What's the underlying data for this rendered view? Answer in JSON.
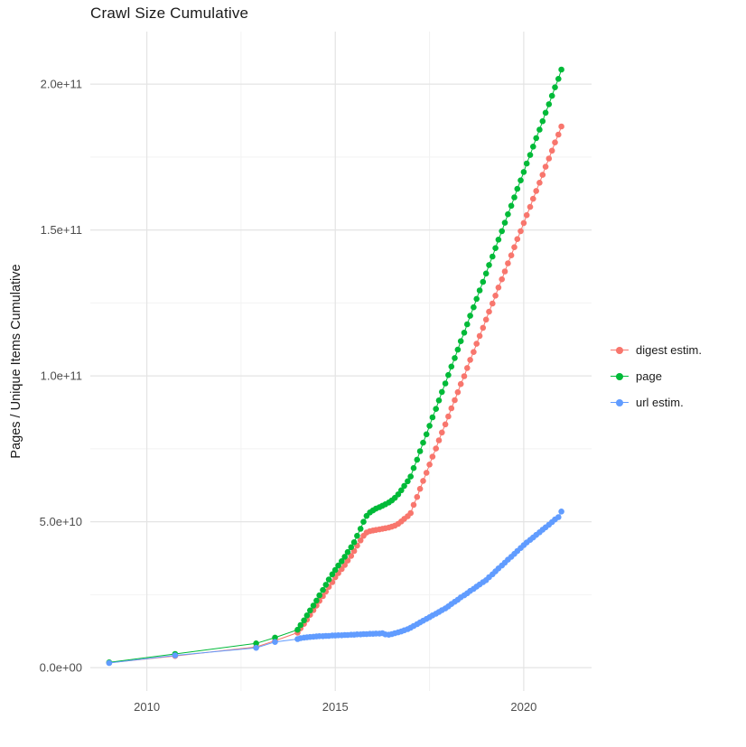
{
  "chart_data": {
    "type": "scatter",
    "title": "Crawl Size Cumulative",
    "xlabel": "",
    "ylabel": "Pages / Unique Items Cumulative",
    "y_unit": "absolute count (values below stored in units of 1e9)",
    "xlim": [
      2008.5,
      2021.8
    ],
    "ylim_e9": [
      -8,
      218
    ],
    "grid": true,
    "legend_position": "right",
    "x_ticks": [
      {
        "value": 2010,
        "label": "2010"
      },
      {
        "value": 2015,
        "label": "2015"
      },
      {
        "value": 2020,
        "label": "2020"
      }
    ],
    "y_ticks": [
      {
        "value_e9": 0,
        "label": "0.0e+00"
      },
      {
        "value_e9": 50,
        "label": "5.0e+10"
      },
      {
        "value_e9": 100,
        "label": "1.0e+11"
      },
      {
        "value_e9": 150,
        "label": "1.5e+11"
      },
      {
        "value_e9": 200,
        "label": "2.0e+11"
      }
    ],
    "x_minor": [
      2012.5,
      2017.5
    ],
    "y_minor_e9": [
      25,
      75,
      125,
      175
    ],
    "series": [
      {
        "name": "digest estim.",
        "color": "#F8766D",
        "points": [
          [
            2009,
            1.7
          ],
          [
            2010.75,
            4
          ],
          [
            2012.9,
            7.1
          ],
          [
            2013.4,
            9.2
          ],
          [
            2014,
            12
          ],
          [
            2014.08,
            13.5
          ],
          [
            2014.17,
            15
          ],
          [
            2014.25,
            16.5
          ],
          [
            2014.33,
            18.1
          ],
          [
            2014.42,
            19.7
          ],
          [
            2014.5,
            21.3
          ],
          [
            2014.58,
            22.9
          ],
          [
            2014.67,
            24.5
          ],
          [
            2014.75,
            26.1
          ],
          [
            2014.83,
            27.7
          ],
          [
            2014.92,
            29.3
          ],
          [
            2015,
            31
          ],
          [
            2015.08,
            32.4
          ],
          [
            2015.17,
            33.8
          ],
          [
            2015.25,
            35.2
          ],
          [
            2015.33,
            36.7
          ],
          [
            2015.42,
            38.3
          ],
          [
            2015.5,
            40
          ],
          [
            2015.58,
            41.8
          ],
          [
            2015.67,
            43.6
          ],
          [
            2015.75,
            45.2
          ],
          [
            2015.83,
            46.3
          ],
          [
            2015.92,
            46.8
          ],
          [
            2016,
            47
          ],
          [
            2016.08,
            47.2
          ],
          [
            2016.17,
            47.4
          ],
          [
            2016.25,
            47.6
          ],
          [
            2016.33,
            47.8
          ],
          [
            2016.42,
            48
          ],
          [
            2016.5,
            48.3
          ],
          [
            2016.58,
            48.7
          ],
          [
            2016.67,
            49.3
          ],
          [
            2016.75,
            50.1
          ],
          [
            2016.83,
            51
          ],
          [
            2016.92,
            51.9
          ],
          [
            2017,
            53
          ],
          [
            2017.08,
            55.8
          ],
          [
            2017.17,
            58.5
          ],
          [
            2017.25,
            61.3
          ],
          [
            2017.33,
            64
          ],
          [
            2017.42,
            66.8
          ],
          [
            2017.5,
            69.6
          ],
          [
            2017.58,
            72.3
          ],
          [
            2017.67,
            75.1
          ],
          [
            2017.75,
            77.9
          ],
          [
            2017.83,
            80.6
          ],
          [
            2017.92,
            83.4
          ],
          [
            2018,
            86.1
          ],
          [
            2018.08,
            88.9
          ],
          [
            2018.17,
            91.7
          ],
          [
            2018.25,
            94.4
          ],
          [
            2018.33,
            97.2
          ],
          [
            2018.42,
            99.9
          ],
          [
            2018.5,
            102.7
          ],
          [
            2018.58,
            105.5
          ],
          [
            2018.67,
            108.2
          ],
          [
            2018.75,
            111
          ],
          [
            2018.83,
            113.7
          ],
          [
            2018.92,
            116.5
          ],
          [
            2019,
            119.3
          ],
          [
            2019.08,
            122
          ],
          [
            2019.17,
            124.8
          ],
          [
            2019.25,
            127.5
          ],
          [
            2019.33,
            130.3
          ],
          [
            2019.42,
            133.1
          ],
          [
            2019.5,
            135.8
          ],
          [
            2019.58,
            138.6
          ],
          [
            2019.67,
            141.3
          ],
          [
            2019.75,
            144.1
          ],
          [
            2019.83,
            146.9
          ],
          [
            2019.92,
            149.6
          ],
          [
            2020,
            152.4
          ],
          [
            2020.08,
            155.1
          ],
          [
            2020.17,
            157.9
          ],
          [
            2020.25,
            160.7
          ],
          [
            2020.33,
            163.4
          ],
          [
            2020.42,
            166.2
          ],
          [
            2020.5,
            168.9
          ],
          [
            2020.58,
            171.7
          ],
          [
            2020.67,
            174.5
          ],
          [
            2020.75,
            177.2
          ],
          [
            2020.83,
            180
          ],
          [
            2020.92,
            182.7
          ],
          [
            2021,
            185.5
          ]
        ]
      },
      {
        "name": "page",
        "color": "#00BA38",
        "points": [
          [
            2009,
            1.8
          ],
          [
            2010.75,
            4.7
          ],
          [
            2012.9,
            8.3
          ],
          [
            2013.4,
            10.3
          ],
          [
            2014,
            13
          ],
          [
            2014.08,
            14.6
          ],
          [
            2014.17,
            16.2
          ],
          [
            2014.25,
            17.9
          ],
          [
            2014.33,
            19.6
          ],
          [
            2014.42,
            21.3
          ],
          [
            2014.5,
            23
          ],
          [
            2014.58,
            24.8
          ],
          [
            2014.67,
            26.6
          ],
          [
            2014.75,
            28.4
          ],
          [
            2014.83,
            30.2
          ],
          [
            2014.92,
            32
          ],
          [
            2015,
            33.5
          ],
          [
            2015.08,
            35
          ],
          [
            2015.17,
            36.5
          ],
          [
            2015.25,
            38
          ],
          [
            2015.33,
            39.6
          ],
          [
            2015.42,
            41.3
          ],
          [
            2015.5,
            43
          ],
          [
            2015.58,
            45.2
          ],
          [
            2015.67,
            47.6
          ],
          [
            2015.75,
            50
          ],
          [
            2015.83,
            52
          ],
          [
            2015.92,
            53.2
          ],
          [
            2016,
            53.9
          ],
          [
            2016.08,
            54.5
          ],
          [
            2016.17,
            55
          ],
          [
            2016.25,
            55.5
          ],
          [
            2016.33,
            56
          ],
          [
            2016.42,
            56.6
          ],
          [
            2016.5,
            57.3
          ],
          [
            2016.58,
            58.2
          ],
          [
            2016.67,
            59.4
          ],
          [
            2016.75,
            60.8
          ],
          [
            2016.83,
            62.3
          ],
          [
            2016.92,
            63.9
          ],
          [
            2017,
            65.5
          ],
          [
            2017.08,
            68.4
          ],
          [
            2017.17,
            71.3
          ],
          [
            2017.25,
            74.2
          ],
          [
            2017.33,
            77.1
          ],
          [
            2017.42,
            80
          ],
          [
            2017.5,
            82.9
          ],
          [
            2017.58,
            85.8
          ],
          [
            2017.67,
            88.7
          ],
          [
            2017.75,
            91.6
          ],
          [
            2017.83,
            94.5
          ],
          [
            2017.92,
            97.4
          ],
          [
            2018,
            100.3
          ],
          [
            2018.08,
            103.2
          ],
          [
            2018.17,
            106.1
          ],
          [
            2018.25,
            109
          ],
          [
            2018.33,
            111.9
          ],
          [
            2018.42,
            114.8
          ],
          [
            2018.5,
            117.7
          ],
          [
            2018.58,
            120.6
          ],
          [
            2018.67,
            123.5
          ],
          [
            2018.75,
            126.4
          ],
          [
            2018.83,
            129.3
          ],
          [
            2018.92,
            132.2
          ],
          [
            2019,
            135.1
          ],
          [
            2019.08,
            138
          ],
          [
            2019.17,
            140.9
          ],
          [
            2019.25,
            143.8
          ],
          [
            2019.33,
            146.7
          ],
          [
            2019.42,
            149.6
          ],
          [
            2019.5,
            152.5
          ],
          [
            2019.58,
            155.4
          ],
          [
            2019.67,
            158.3
          ],
          [
            2019.75,
            161.2
          ],
          [
            2019.83,
            164.1
          ],
          [
            2019.92,
            167
          ],
          [
            2020,
            169.9
          ],
          [
            2020.08,
            172.8
          ],
          [
            2020.17,
            175.7
          ],
          [
            2020.25,
            178.6
          ],
          [
            2020.33,
            181.5
          ],
          [
            2020.42,
            184.4
          ],
          [
            2020.5,
            187.3
          ],
          [
            2020.58,
            190.2
          ],
          [
            2020.67,
            193.1
          ],
          [
            2020.75,
            196
          ],
          [
            2020.83,
            198.9
          ],
          [
            2020.92,
            201.8
          ],
          [
            2021,
            205
          ]
        ]
      },
      {
        "name": "url estim.",
        "color": "#619CFF",
        "points": [
          [
            2009,
            1.6
          ],
          [
            2010.75,
            4.2
          ],
          [
            2012.9,
            6.8
          ],
          [
            2013.4,
            8.8
          ],
          [
            2014,
            9.8
          ],
          [
            2014.08,
            10.1
          ],
          [
            2014.17,
            10.3
          ],
          [
            2014.25,
            10.4
          ],
          [
            2014.33,
            10.5
          ],
          [
            2014.42,
            10.6
          ],
          [
            2014.5,
            10.7
          ],
          [
            2014.58,
            10.8
          ],
          [
            2014.67,
            10.8
          ],
          [
            2014.75,
            10.9
          ],
          [
            2014.83,
            10.9
          ],
          [
            2014.92,
            11
          ],
          [
            2015,
            11
          ],
          [
            2015.08,
            11.1
          ],
          [
            2015.17,
            11.1
          ],
          [
            2015.25,
            11.2
          ],
          [
            2015.33,
            11.2
          ],
          [
            2015.42,
            11.3
          ],
          [
            2015.5,
            11.3
          ],
          [
            2015.58,
            11.4
          ],
          [
            2015.67,
            11.4
          ],
          [
            2015.75,
            11.5
          ],
          [
            2015.83,
            11.5
          ],
          [
            2015.92,
            11.6
          ],
          [
            2016,
            11.6
          ],
          [
            2016.08,
            11.7
          ],
          [
            2016.17,
            11.7
          ],
          [
            2016.25,
            11.8
          ],
          [
            2016.33,
            11.4
          ],
          [
            2016.42,
            11.3
          ],
          [
            2016.5,
            11.5
          ],
          [
            2016.58,
            11.8
          ],
          [
            2016.67,
            12.1
          ],
          [
            2016.75,
            12.4
          ],
          [
            2016.83,
            12.8
          ],
          [
            2016.92,
            13.2
          ],
          [
            2017,
            13.7
          ],
          [
            2017.08,
            14.3
          ],
          [
            2017.17,
            14.9
          ],
          [
            2017.25,
            15.5
          ],
          [
            2017.33,
            16.1
          ],
          [
            2017.42,
            16.7
          ],
          [
            2017.5,
            17.3
          ],
          [
            2017.58,
            17.9
          ],
          [
            2017.67,
            18.5
          ],
          [
            2017.75,
            19.1
          ],
          [
            2017.83,
            19.7
          ],
          [
            2017.92,
            20.3
          ],
          [
            2018,
            21
          ],
          [
            2018.08,
            21.8
          ],
          [
            2018.17,
            22.6
          ],
          [
            2018.25,
            23.3
          ],
          [
            2018.33,
            24.1
          ],
          [
            2018.42,
            24.8
          ],
          [
            2018.5,
            25.5
          ],
          [
            2018.58,
            26.3
          ],
          [
            2018.67,
            27
          ],
          [
            2018.75,
            27.8
          ],
          [
            2018.83,
            28.5
          ],
          [
            2018.92,
            29.3
          ],
          [
            2019,
            30
          ],
          [
            2019.08,
            31
          ],
          [
            2019.17,
            32
          ],
          [
            2019.25,
            33
          ],
          [
            2019.33,
            34
          ],
          [
            2019.42,
            35
          ],
          [
            2019.5,
            36
          ],
          [
            2019.58,
            37
          ],
          [
            2019.67,
            38
          ],
          [
            2019.75,
            39
          ],
          [
            2019.83,
            40
          ],
          [
            2019.92,
            41
          ],
          [
            2020,
            42
          ],
          [
            2020.08,
            42.9
          ],
          [
            2020.17,
            43.8
          ],
          [
            2020.25,
            44.6
          ],
          [
            2020.33,
            45.5
          ],
          [
            2020.42,
            46.4
          ],
          [
            2020.5,
            47.3
          ],
          [
            2020.58,
            48.1
          ],
          [
            2020.67,
            49
          ],
          [
            2020.75,
            49.9
          ],
          [
            2020.83,
            50.8
          ],
          [
            2020.92,
            51.6
          ],
          [
            2021,
            53.5
          ]
        ]
      }
    ]
  },
  "legend": {
    "items": [
      {
        "label": "digest estim.",
        "color": "#F8766D"
      },
      {
        "label": "page",
        "color": "#00BA38"
      },
      {
        "label": "url estim.",
        "color": "#619CFF"
      }
    ]
  },
  "colors": {
    "major_grid": "#E4E4E4",
    "minor_grid": "#F2F2F2",
    "tick_text": "#4D4D4D",
    "title_text": "#1a1a1a"
  }
}
